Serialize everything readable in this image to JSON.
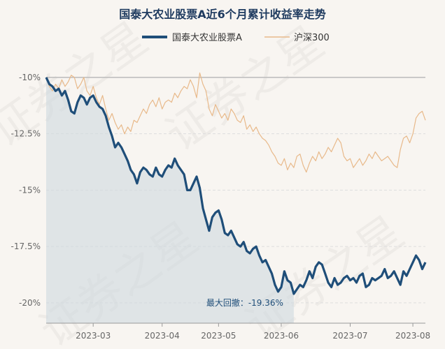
{
  "chart_data": {
    "type": "line",
    "title": "国泰大农业股票A近6个月累计收益率走势",
    "ylim": [
      -20.9,
      -9.6
    ],
    "ytick_values": [
      -10,
      -12.5,
      -15,
      -17.5,
      -20
    ],
    "ytick_labels": [
      "-10%",
      "-12.5%",
      "-15%",
      "-17.5%",
      "-20%"
    ],
    "xtick_labels": [
      "2023-03",
      "2023-04",
      "2023-05",
      "2023-06",
      "2023-07",
      "2023-08"
    ],
    "xtick_index": [
      15,
      37,
      55,
      75,
      97,
      117
    ],
    "grid": true,
    "legend_position": "top-center",
    "annotation": "最大回撤：-19.36%",
    "colors": {
      "fund": "#1f4e79",
      "index": "#e8b98a",
      "drawdown_fill": "#cfd9e0"
    },
    "series": [
      {
        "name": "国泰大农业股票A",
        "values": [
          -10.0,
          -10.3,
          -10.4,
          -10.6,
          -10.5,
          -10.8,
          -10.6,
          -11.0,
          -11.5,
          -11.6,
          -11.1,
          -10.8,
          -10.9,
          -11.2,
          -10.9,
          -10.8,
          -11.1,
          -11.3,
          -11.4,
          -11.7,
          -12.2,
          -12.6,
          -13.1,
          -12.9,
          -13.1,
          -13.4,
          -13.7,
          -14.1,
          -14.3,
          -14.7,
          -14.2,
          -14.0,
          -14.1,
          -14.3,
          -14.4,
          -14.0,
          -14.3,
          -14.4,
          -14.1,
          -13.9,
          -14.0,
          -13.6,
          -13.9,
          -14.1,
          -14.3,
          -15.0,
          -15.0,
          -14.7,
          -14.4,
          -14.9,
          -15.8,
          -16.3,
          -16.8,
          -16.2,
          -16.0,
          -15.9,
          -16.3,
          -16.9,
          -17.0,
          -16.8,
          -17.1,
          -17.4,
          -17.5,
          -17.3,
          -17.7,
          -17.8,
          -17.6,
          -17.5,
          -17.9,
          -18.2,
          -18.1,
          -18.4,
          -18.7,
          -19.2,
          -19.5,
          -19.3,
          -18.6,
          -19.0,
          -19.1,
          -19.6,
          -19.4,
          -19.2,
          -19.3,
          -19.0,
          -18.6,
          -18.9,
          -18.4,
          -18.2,
          -18.3,
          -18.7,
          -19.1,
          -19.3,
          -18.9,
          -19.2,
          -19.1,
          -18.9,
          -18.8,
          -19.0,
          -18.9,
          -19.1,
          -18.8,
          -18.7,
          -19.3,
          -19.2,
          -18.9,
          -19.0,
          -18.9,
          -18.8,
          -18.5,
          -18.9,
          -18.8,
          -18.6,
          -18.9,
          -19.2,
          -18.6,
          -18.8,
          -18.5,
          -18.2,
          -17.9,
          -18.1,
          -18.5,
          -18.2
        ]
      },
      {
        "name": "沪深300",
        "values": [
          -10.0,
          -10.4,
          -10.6,
          -10.3,
          -10.5,
          -10.1,
          -10.4,
          -10.2,
          -9.9,
          -10.0,
          -10.5,
          -10.3,
          -10.0,
          -10.6,
          -10.8,
          -10.4,
          -10.9,
          -11.2,
          -10.8,
          -11.4,
          -11.9,
          -11.6,
          -12.0,
          -12.3,
          -12.1,
          -12.5,
          -12.2,
          -12.4,
          -11.9,
          -12.0,
          -11.7,
          -11.4,
          -11.6,
          -11.2,
          -11.0,
          -11.3,
          -10.9,
          -11.4,
          -11.1,
          -11.0,
          -11.1,
          -10.7,
          -10.9,
          -10.6,
          -10.4,
          -10.5,
          -10.1,
          -10.4,
          -10.9,
          -9.8,
          -10.3,
          -10.6,
          -11.4,
          -11.7,
          -11.2,
          -11.5,
          -11.8,
          -11.6,
          -11.9,
          -11.4,
          -11.6,
          -11.9,
          -12.0,
          -11.7,
          -12.3,
          -12.1,
          -12.4,
          -12.2,
          -12.5,
          -12.7,
          -12.8,
          -13.0,
          -13.3,
          -13.5,
          -13.8,
          -13.9,
          -13.6,
          -14.1,
          -13.8,
          -14.0,
          -13.5,
          -13.4,
          -13.9,
          -14.2,
          -13.8,
          -13.5,
          -13.7,
          -13.3,
          -13.6,
          -13.4,
          -13.1,
          -13.3,
          -13.0,
          -12.7,
          -12.9,
          -13.5,
          -13.7,
          -13.6,
          -14.0,
          -13.8,
          -13.6,
          -13.9,
          -13.7,
          -13.4,
          -13.6,
          -13.3,
          -13.5,
          -13.7,
          -13.6,
          -13.5,
          -13.7,
          -13.9,
          -14.0,
          -13.2,
          -12.7,
          -12.6,
          -12.9,
          -12.5,
          -11.8,
          -11.6,
          -11.5,
          -11.9
        ]
      }
    ]
  }
}
